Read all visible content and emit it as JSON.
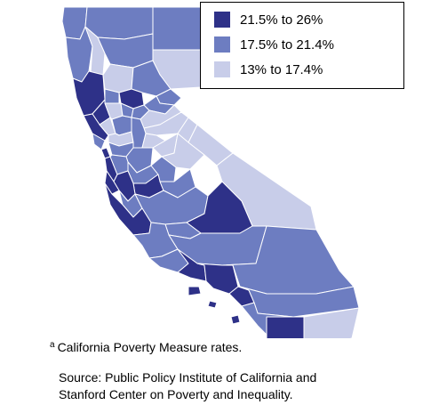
{
  "colors": {
    "high": "#2e3188",
    "mid": "#6d7dc1",
    "low": "#c8cde9",
    "county_border": "#ffffff",
    "frame": "#000000"
  },
  "legend": {
    "items": [
      {
        "label": "21.5% to 26%",
        "level": "high"
      },
      {
        "label": "17.5% to 21.4%",
        "level": "mid"
      },
      {
        "label": "13% to 17.4%",
        "level": "low"
      }
    ],
    "placement": "top-right"
  },
  "footnote": {
    "marker": "a",
    "text": "California Poverty Measure rates."
  },
  "source": {
    "line1": "Source: Public Policy Institute of California and",
    "line2": "Stanford Center on Poverty and Inequality."
  },
  "map": {
    "regions": [
      {
        "name": "del-norte",
        "level": "mid"
      },
      {
        "name": "siskiyou",
        "level": "mid"
      },
      {
        "name": "modoc",
        "level": "mid"
      },
      {
        "name": "humboldt",
        "level": "mid"
      },
      {
        "name": "trinity",
        "level": "low"
      },
      {
        "name": "shasta",
        "level": "mid"
      },
      {
        "name": "lassen",
        "level": "low"
      },
      {
        "name": "mendocino",
        "level": "high"
      },
      {
        "name": "tehama",
        "level": "low"
      },
      {
        "name": "plumas",
        "level": "mid"
      },
      {
        "name": "glenn",
        "level": "mid"
      },
      {
        "name": "butte",
        "level": "high"
      },
      {
        "name": "sierra",
        "level": "mid"
      },
      {
        "name": "lake",
        "level": "high"
      },
      {
        "name": "colusa",
        "level": "low"
      },
      {
        "name": "yuba",
        "level": "mid"
      },
      {
        "name": "nevada",
        "level": "mid"
      },
      {
        "name": "sonoma",
        "level": "high"
      },
      {
        "name": "napa",
        "level": "low"
      },
      {
        "name": "yolo",
        "level": "mid"
      },
      {
        "name": "sutter",
        "level": "mid"
      },
      {
        "name": "placer",
        "level": "low"
      },
      {
        "name": "el-dorado",
        "level": "low"
      },
      {
        "name": "marin",
        "level": "mid"
      },
      {
        "name": "solano",
        "level": "low"
      },
      {
        "name": "sacramento",
        "level": "mid"
      },
      {
        "name": "amador",
        "level": "low"
      },
      {
        "name": "alpine",
        "level": "low"
      },
      {
        "name": "san-francisco",
        "level": "high"
      },
      {
        "name": "contra-costa",
        "level": "mid"
      },
      {
        "name": "san-joaquin",
        "level": "mid"
      },
      {
        "name": "calaveras",
        "level": "low"
      },
      {
        "name": "tuolumne",
        "level": "low"
      },
      {
        "name": "mono",
        "level": "low"
      },
      {
        "name": "san-mateo",
        "level": "high"
      },
      {
        "name": "alameda",
        "level": "mid"
      },
      {
        "name": "stanislaus",
        "level": "mid"
      },
      {
        "name": "mariposa",
        "level": "mid"
      },
      {
        "name": "merced",
        "level": "high"
      },
      {
        "name": "santa-clara",
        "level": "high"
      },
      {
        "name": "santa-cruz",
        "level": "high"
      },
      {
        "name": "san-benito",
        "level": "mid"
      },
      {
        "name": "madera",
        "level": "mid"
      },
      {
        "name": "fresno",
        "level": "mid"
      },
      {
        "name": "inyo",
        "level": "low"
      },
      {
        "name": "monterey",
        "level": "high"
      },
      {
        "name": "tulare",
        "level": "high"
      },
      {
        "name": "kings",
        "level": "mid"
      },
      {
        "name": "san-luis-obispo",
        "level": "mid"
      },
      {
        "name": "kern",
        "level": "mid"
      },
      {
        "name": "santa-barbara",
        "level": "mid"
      },
      {
        "name": "ventura",
        "level": "high"
      },
      {
        "name": "los-angeles",
        "level": "high"
      },
      {
        "name": "san-bernardino",
        "level": "mid"
      },
      {
        "name": "orange",
        "level": "high"
      },
      {
        "name": "riverside",
        "level": "mid"
      },
      {
        "name": "san-diego",
        "level": "mid"
      },
      {
        "name": "imperial",
        "level": "high"
      },
      {
        "name": "east-imperial",
        "level": "low"
      },
      {
        "name": "channel-islands",
        "level": "high"
      }
    ]
  }
}
